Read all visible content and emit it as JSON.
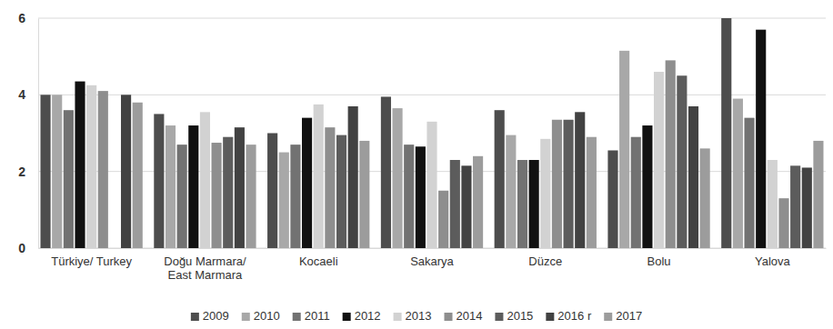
{
  "chart_data": {
    "type": "bar",
    "categories": [
      "Türkiye/ Turkey",
      "Doğu Marmara/\nEast Marmara",
      "Kocaeli",
      "Sakarya",
      "Düzce",
      "Bolu",
      "Yalova"
    ],
    "series": [
      {
        "name": "2009",
        "color": "#4d4d4d",
        "values": [
          4.0,
          3.5,
          3.0,
          3.95,
          3.6,
          2.55,
          6.0
        ]
      },
      {
        "name": "2010",
        "color": "#a8a8a8",
        "values": [
          4.0,
          3.2,
          2.5,
          3.65,
          2.95,
          5.15,
          3.9
        ]
      },
      {
        "name": "2011",
        "color": "#727272",
        "values": [
          3.6,
          2.7,
          2.7,
          2.7,
          2.3,
          2.9,
          3.4
        ]
      },
      {
        "name": "2012",
        "color": "#111111",
        "values": [
          4.35,
          3.2,
          3.4,
          2.65,
          2.3,
          3.2,
          5.7
        ]
      },
      {
        "name": "2013",
        "color": "#d2d2d2",
        "values": [
          4.25,
          3.55,
          3.75,
          3.3,
          2.85,
          4.6,
          2.3
        ]
      },
      {
        "name": "2014",
        "color": "#8e8e8e",
        "values": [
          4.1,
          2.75,
          3.15,
          1.5,
          3.35,
          4.9,
          1.3
        ]
      },
      {
        "name": "2015",
        "color": "#5c5c5c",
        "values": [
          null,
          2.9,
          2.95,
          2.3,
          3.35,
          4.5,
          2.15
        ]
      },
      {
        "name": "2016 r",
        "color": "#424242",
        "values": [
          4.0,
          3.15,
          3.7,
          2.15,
          3.55,
          3.7,
          2.1
        ]
      },
      {
        "name": "2017",
        "color": "#9c9c9c",
        "values": [
          3.8,
          2.7,
          2.8,
          2.4,
          2.9,
          2.6,
          2.8
        ]
      }
    ],
    "ylim": [
      0,
      6
    ],
    "yticks": [
      0,
      2,
      4,
      6
    ],
    "grid": true,
    "legend": "bottom"
  }
}
